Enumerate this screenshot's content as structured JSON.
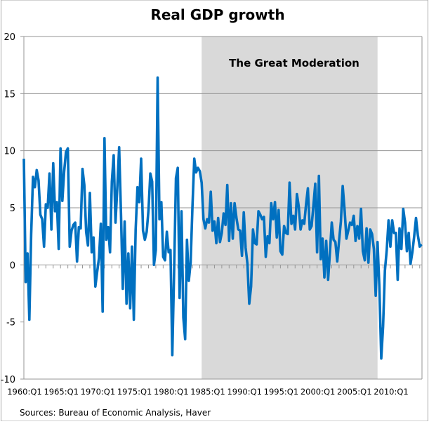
{
  "chart_data": {
    "type": "line",
    "title": "Real GDP growth",
    "xlabel": "",
    "ylabel": "",
    "ylim": [
      -10,
      20
    ],
    "yticks": [
      -10,
      -5,
      0,
      5,
      10,
      15,
      20
    ],
    "grid": true,
    "start_period": "1960:Q1",
    "x_tick_labels": [
      "1960:Q1",
      "1965:Q1",
      "1970:Q1",
      "1975:Q1",
      "1980:Q1",
      "1985:Q1",
      "1990:Q1",
      "1995:Q1",
      "2000:Q1",
      "2005:Q1",
      "2010:Q1"
    ],
    "shaded_region": {
      "label": "The Great Moderation",
      "start_year": 1984.25,
      "end_year": 2008.25,
      "color": "#d9d9d9"
    },
    "series": [
      {
        "name": "Real GDP growth",
        "color": "#0070c0",
        "values": [
          9.3,
          -1.5,
          1.0,
          -4.8,
          2.7,
          7.7,
          6.8,
          8.3,
          7.4,
          4.4,
          4.0,
          1.6,
          5.3,
          5.0,
          8.0,
          3.1,
          8.9,
          4.7,
          5.5,
          1.4,
          10.2,
          5.6,
          8.2,
          9.9,
          10.2,
          1.6,
          3.0,
          3.5,
          3.7,
          0.3,
          3.3,
          3.2,
          8.4,
          7.0,
          2.9,
          1.7,
          6.3,
          1.1,
          2.4,
          -1.9,
          -0.6,
          0.6,
          3.6,
          -4.1,
          11.1,
          2.2,
          3.3,
          1.1,
          7.3,
          9.6,
          3.7,
          6.8,
          10.3,
          4.5,
          -2.1,
          3.8,
          -3.4,
          1.0,
          -3.8,
          1.6,
          -4.8,
          3.1,
          6.8,
          5.5,
          9.3,
          3.0,
          2.2,
          2.9,
          4.8,
          8.0,
          7.3,
          0.0,
          1.3,
          16.4,
          4.0,
          5.5,
          0.7,
          0.4,
          2.9,
          1.1,
          1.3,
          -7.9,
          -0.5,
          7.6,
          8.5,
          -2.9,
          4.7,
          -4.6,
          -6.5,
          2.2,
          -1.4,
          0.2,
          5.1,
          9.3,
          8.1,
          8.5,
          8.2,
          7.2,
          4.0,
          3.2,
          4.0,
          3.7,
          6.4,
          3.0,
          3.8,
          1.9,
          4.1,
          2.0,
          2.8,
          4.5,
          3.5,
          7.0,
          2.1,
          5.4,
          2.3,
          5.4,
          4.1,
          3.1,
          3.0,
          0.8,
          4.6,
          1.5,
          0.1,
          -3.4,
          -1.9,
          3.1,
          1.9,
          1.8,
          4.7,
          4.4,
          4.0,
          4.2,
          0.7,
          2.5,
          1.9,
          5.4,
          4.0,
          5.5,
          2.4,
          4.8,
          1.2,
          0.9,
          3.4,
          2.8,
          2.7,
          7.2,
          3.6,
          4.3,
          3.1,
          6.2,
          5.1,
          3.1,
          3.9,
          3.6,
          5.3,
          6.7,
          3.1,
          3.4,
          5.2,
          7.1,
          1.1,
          7.8,
          0.5,
          2.3,
          -1.1,
          2.1,
          -1.3,
          1.1,
          3.7,
          2.2,
          2.0,
          0.3,
          2.1,
          3.8,
          6.9,
          4.8,
          2.3,
          3.0,
          3.7,
          3.5,
          4.3,
          2.1,
          3.4,
          2.3,
          4.9,
          1.2,
          0.4,
          3.2,
          0.2,
          3.1,
          2.7,
          1.4,
          -2.7,
          2.0,
          -1.9,
          -8.2,
          -5.4,
          -0.5,
          1.3,
          3.9,
          1.6,
          3.9,
          2.8,
          2.8,
          -1.3,
          3.2,
          1.4,
          4.9,
          3.7,
          1.2,
          2.8,
          0.1,
          1.1,
          2.5,
          4.1,
          2.6,
          1.6,
          1.8
        ]
      }
    ],
    "source_note": "Sources:  Bureau of Economic Analysis, Haver"
  }
}
